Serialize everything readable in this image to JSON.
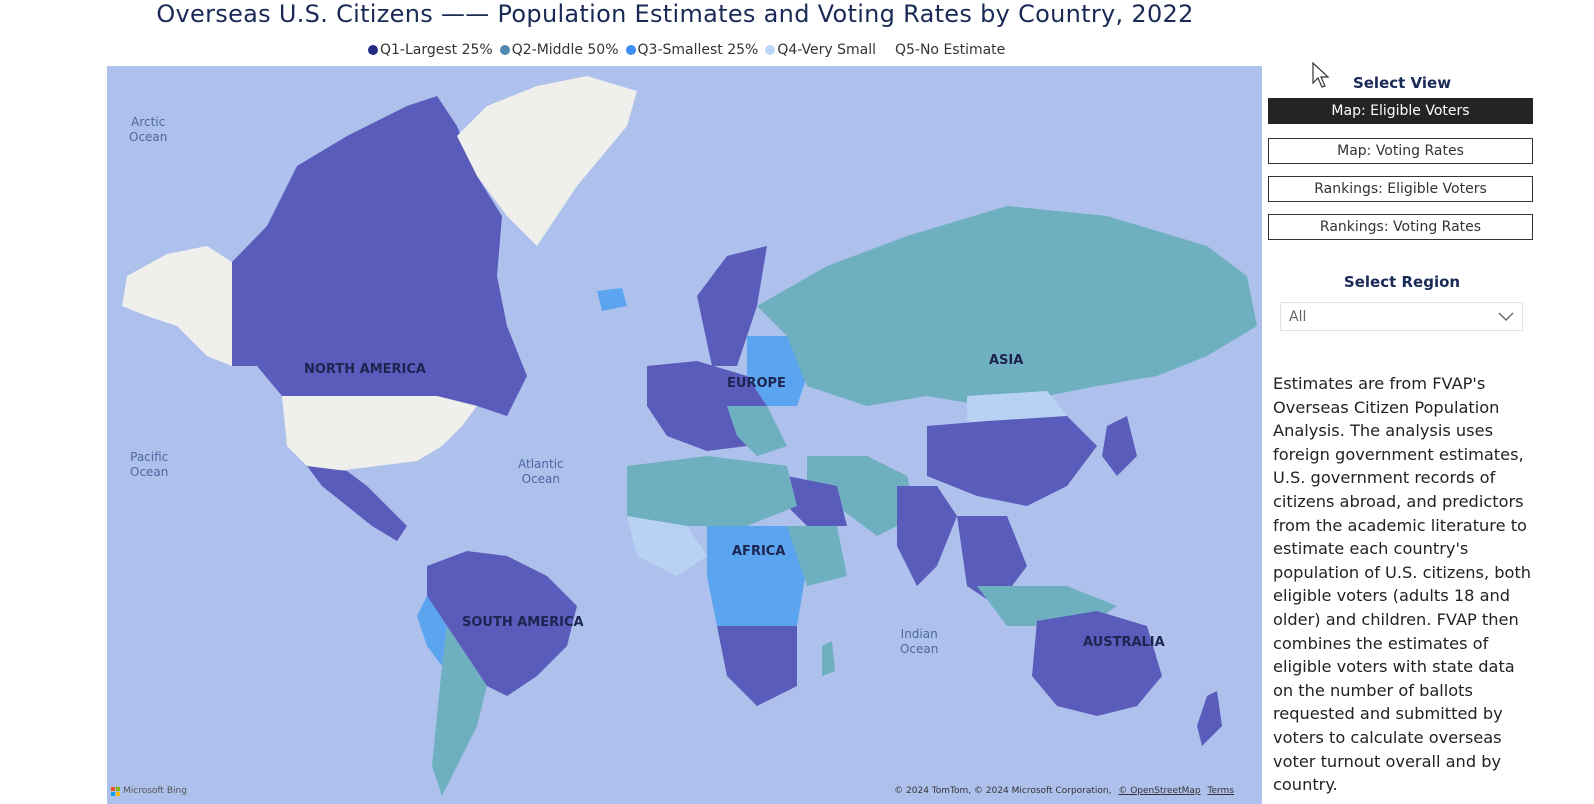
{
  "title": "Overseas U.S. Citizens —— Population Estimates and Voting Rates by Country, 2022",
  "legend": [
    {
      "label": "Q1-Largest 25%",
      "color": "#202b80"
    },
    {
      "label": "Q2-Middle 50%",
      "color": "#5189b3"
    },
    {
      "label": "Q3-Smallest 25%",
      "color": "#3e8ef3"
    },
    {
      "label": "Q4-Very Small",
      "color": "#bcd7f6"
    },
    {
      "label": "Q5-No Estimate",
      "color": ""
    }
  ],
  "map": {
    "regions": {
      "north_america": "NORTH AMERICA",
      "south_america": "SOUTH AMERICA",
      "europe": "EUROPE",
      "africa": "AFRICA",
      "asia": "ASIA",
      "australia": "AUSTRALIA"
    },
    "oceans": {
      "arctic": "Arctic\nOcean",
      "pacific": "Pacific\nOcean",
      "atlantic": "Atlantic\nOcean",
      "indian": "Indian\nOcean"
    },
    "attribution": {
      "bing": "Microsoft Bing",
      "copyright": "© 2024 TomTom, © 2024 Microsoft Corporation,",
      "osm": "© OpenStreetMap",
      "terms": "Terms"
    },
    "colors": {
      "ocean": "#aec1ec",
      "q1": "#5a5cbc",
      "q2": "#6eafc0",
      "q3": "#5ba4ef",
      "q4": "#b7d2f2",
      "no_estimate": "#efefec"
    }
  },
  "select_view": {
    "title": "Select View",
    "options": [
      "Map: Eligible Voters",
      "Map: Voting Rates",
      "Rankings: Eligible Voters",
      "Rankings: Voting Rates"
    ],
    "selected": "Map: Eligible Voters"
  },
  "select_region": {
    "title": "Select Region",
    "value": "All"
  },
  "description": "Estimates are from FVAP's Overseas Citizen Population Analysis. The analysis uses foreign government estimates, U.S. government records of citizens abroad, and predictors from the academic literature to estimate each country's population of U.S. citizens, both eligible voters (adults 18 and older) and children. FVAP then combines the estimates of eligible voters with state data on the number of ballots requested and submitted by voters to calculate overseas voter turnout overall and by country."
}
